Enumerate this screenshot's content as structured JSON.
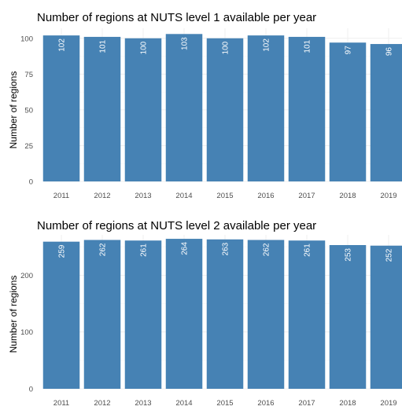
{
  "bar_color": "#4682b4",
  "chart_data": [
    {
      "type": "bar",
      "title": "Number of regions at NUTS level 1 available per year",
      "xlabel": "",
      "ylabel": "Number of regions",
      "categories": [
        "2011",
        "2012",
        "2013",
        "2014",
        "2015",
        "2016",
        "2017",
        "2018",
        "2019"
      ],
      "values": [
        102,
        101,
        100,
        103,
        100,
        102,
        101,
        97,
        96
      ],
      "ylim": [
        0,
        107
      ],
      "yticks": [
        0,
        25,
        50,
        75,
        100
      ],
      "grid": true
    },
    {
      "type": "bar",
      "title": "Number of regions at NUTS level 2 available per year",
      "xlabel": "",
      "ylabel": "Number of regions",
      "categories": [
        "2011",
        "2012",
        "2013",
        "2014",
        "2015",
        "2016",
        "2017",
        "2018",
        "2019"
      ],
      "values": [
        259,
        262,
        261,
        264,
        263,
        262,
        261,
        253,
        252
      ],
      "ylim": [
        0,
        271
      ],
      "yticks": [
        0,
        100,
        200
      ],
      "grid": true
    }
  ]
}
